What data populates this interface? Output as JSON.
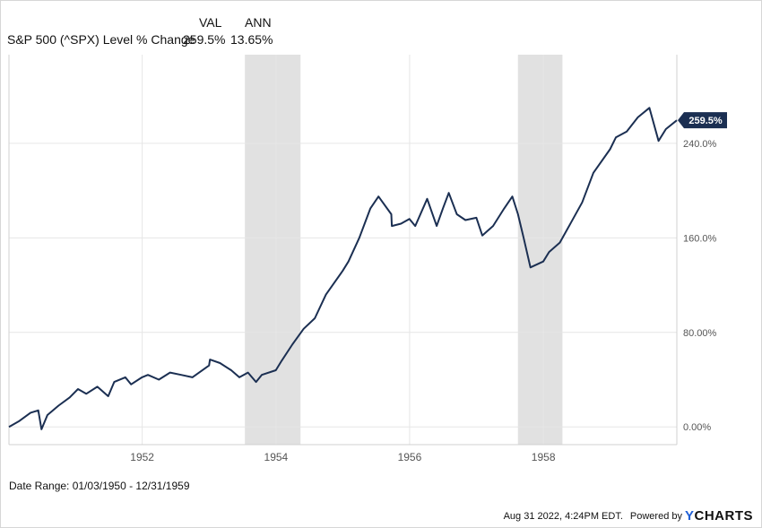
{
  "legend": {
    "col_val": "VAL",
    "col_ann": "ANN",
    "series_label": "S&P 500 (^SPX) Level % Change",
    "val": "259.5%",
    "ann": "13.65%"
  },
  "footer": {
    "date_range": "Date Range: 01/03/1950 - 12/31/1959",
    "timestamp": "Aug 31 2022, 4:24PM EDT.",
    "powered_by": "Powered by",
    "brand_prefix": "Y",
    "brand_rest": "CHARTS"
  },
  "chart_data": {
    "type": "line",
    "x_range": [
      "1950-01-03",
      "1959-12-31"
    ],
    "ylim": [
      -15,
      315
    ],
    "y_ticks": [
      0,
      80,
      160,
      240
    ],
    "y_tick_labels": [
      "0.00%",
      "80.00%",
      "160.0%",
      "240.0%"
    ],
    "x_ticks": [
      "1952",
      "1954",
      "1956",
      "1958"
    ],
    "grid": true,
    "end_label": "259.5%",
    "line_color": "#1b2f52",
    "shaded_periods": [
      {
        "start": "1953-07-15",
        "end": "1954-05-15"
      },
      {
        "start": "1957-08-15",
        "end": "1958-04-15"
      }
    ],
    "series": [
      {
        "x": [
          "1950-01-03",
          "1950-03-01",
          "1950-05-01",
          "1950-06-12",
          "1950-06-30",
          "1950-08-01",
          "1950-10-01",
          "1950-12-01",
          "1951-01-15",
          "1951-03-01",
          "1951-05-01",
          "1951-06-29",
          "1951-08-01",
          "1951-10-01",
          "1951-11-01",
          "1951-12-31",
          "1952-02-01",
          "1952-04-01",
          "1952-06-01",
          "1952-08-01",
          "1952-10-01",
          "1952-12-31",
          "1953-01-05",
          "1953-03-01",
          "1953-05-01",
          "1953-06-15",
          "1953-08-01",
          "1953-09-14",
          "1953-10-15",
          "1953-12-31",
          "1954-02-01",
          "1954-04-01",
          "1954-06-01",
          "1954-08-01",
          "1954-10-01",
          "1954-12-31",
          "1955-02-01",
          "1955-04-01",
          "1955-06-01",
          "1955-07-15",
          "1955-09-23",
          "1955-09-26",
          "1955-11-15",
          "1955-12-31",
          "1956-02-01",
          "1956-04-06",
          "1956-05-28",
          "1956-07-01",
          "1956-08-02",
          "1956-09-15",
          "1956-11-01",
          "1956-12-31",
          "1957-02-01",
          "1957-04-01",
          "1957-06-01",
          "1957-07-15",
          "1957-08-15",
          "1957-09-15",
          "1957-10-22",
          "1957-12-31",
          "1958-02-01",
          "1958-04-01",
          "1958-06-01",
          "1958-08-01",
          "1958-10-01",
          "1958-12-31",
          "1959-02-01",
          "1959-04-01",
          "1959-06-01",
          "1959-08-03",
          "1959-09-22",
          "1959-11-01",
          "1959-12-31"
        ],
        "values": [
          0,
          5,
          12,
          14,
          -2,
          10,
          18,
          25,
          32,
          28,
          34,
          26,
          38,
          42,
          36,
          42,
          44,
          40,
          46,
          44,
          42,
          52,
          57,
          54,
          48,
          42,
          46,
          38,
          44,
          48,
          56,
          70,
          83,
          92,
          112,
          132,
          140,
          160,
          185,
          195,
          180,
          170,
          172,
          176,
          170,
          193,
          170,
          185,
          198,
          180,
          175,
          177,
          162,
          170,
          185,
          195,
          180,
          160,
          135,
          140,
          148,
          156,
          173,
          190,
          215,
          235,
          245,
          250,
          262,
          270,
          242,
          252,
          259.5
        ]
      }
    ]
  }
}
